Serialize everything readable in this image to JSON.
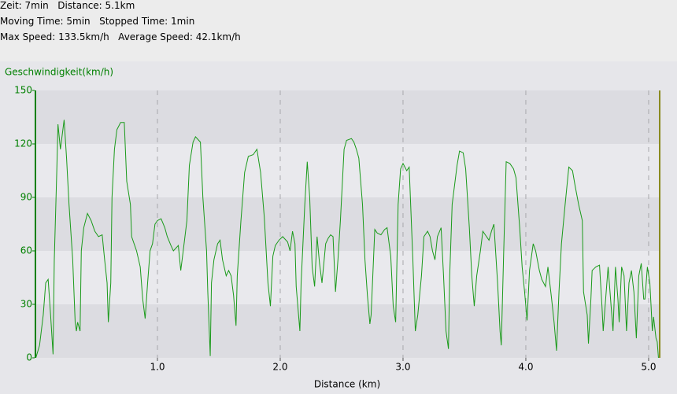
{
  "header": {
    "lines": [
      "Zeit: 7min   Distance: 5.1km",
      "Moving Time: 5min   Stopped Time: 1min",
      "Max Speed: 133.5km/h   Average Speed: 42.1km/h"
    ]
  },
  "chart_data": {
    "type": "line",
    "y_label": "Geschwindigkeit(km/h)",
    "x_label": "Distance (km)",
    "xlim": [
      0,
      5.09
    ],
    "ylim": [
      0,
      150
    ],
    "xticks": [
      {
        "value": 1,
        "label": "1.0"
      },
      {
        "value": 2,
        "label": "2.0"
      },
      {
        "value": 3,
        "label": "3.0"
      },
      {
        "value": 4,
        "label": "4.0"
      },
      {
        "value": 5,
        "label": "5.0"
      }
    ],
    "yticks": [
      0,
      30,
      60,
      90,
      120,
      150
    ],
    "grid": true,
    "x": [
      0.01,
      0.04,
      0.07,
      0.09,
      0.11,
      0.13,
      0.15,
      0.16,
      0.18,
      0.19,
      0.21,
      0.23,
      0.24,
      0.26,
      0.28,
      0.31,
      0.33,
      0.34,
      0.35,
      0.37,
      0.38,
      0.4,
      0.43,
      0.46,
      0.49,
      0.52,
      0.55,
      0.57,
      0.59,
      0.6,
      0.62,
      0.63,
      0.65,
      0.67,
      0.7,
      0.73,
      0.75,
      0.78,
      0.79,
      0.83,
      0.86,
      0.88,
      0.9,
      0.92,
      0.94,
      0.96,
      0.98,
      1.0,
      1.03,
      1.06,
      1.08,
      1.11,
      1.13,
      1.17,
      1.19,
      1.21,
      1.24,
      1.26,
      1.29,
      1.31,
      1.35,
      1.37,
      1.4,
      1.41,
      1.43,
      1.44,
      1.46,
      1.49,
      1.51,
      1.53,
      1.56,
      1.58,
      1.6,
      1.62,
      1.64,
      1.65,
      1.68,
      1.71,
      1.74,
      1.78,
      1.81,
      1.84,
      1.87,
      1.9,
      1.92,
      1.94,
      1.96,
      1.99,
      2.02,
      2.06,
      2.08,
      2.1,
      2.12,
      2.13,
      2.16,
      2.17,
      2.2,
      2.22,
      2.24,
      2.26,
      2.28,
      2.3,
      2.32,
      2.34,
      2.37,
      2.39,
      2.41,
      2.43,
      2.45,
      2.47,
      2.49,
      2.52,
      2.54,
      2.58,
      2.6,
      2.62,
      2.64,
      2.67,
      2.69,
      2.71,
      2.73,
      2.74,
      2.77,
      2.79,
      2.82,
      2.85,
      2.87,
      2.9,
      2.92,
      2.94,
      2.96,
      2.98,
      3.0,
      3.03,
      3.05,
      3.08,
      3.1,
      3.12,
      3.15,
      3.17,
      3.2,
      3.22,
      3.24,
      3.26,
      3.28,
      3.31,
      3.33,
      3.35,
      3.37,
      3.38,
      3.4,
      3.44,
      3.46,
      3.49,
      3.51,
      3.54,
      3.56,
      3.58,
      3.6,
      3.63,
      3.65,
      3.67,
      3.7,
      3.72,
      3.74,
      3.77,
      3.79,
      3.8,
      3.82,
      3.84,
      3.87,
      3.9,
      3.92,
      3.95,
      3.97,
      3.99,
      4.01,
      4.03,
      4.06,
      4.08,
      4.11,
      4.13,
      4.16,
      4.18,
      4.21,
      4.23,
      4.25,
      4.27,
      4.29,
      4.32,
      4.35,
      4.38,
      4.4,
      4.43,
      4.46,
      4.47,
      4.5,
      4.51,
      4.53,
      4.54,
      4.57,
      4.6,
      4.62,
      4.63,
      4.65,
      4.67,
      4.69,
      4.71,
      4.73,
      4.75,
      4.76,
      4.78,
      4.8,
      4.82,
      4.84,
      4.86,
      4.88,
      4.9,
      4.92,
      4.94,
      4.96,
      4.97,
      4.99,
      5.01,
      5.02,
      5.03,
      5.04,
      5.06,
      5.07,
      5.08
    ],
    "series": [
      {
        "name": "Geschwindigkeit",
        "color": "#1a9a1a",
        "values": [
          0,
          7,
          24,
          42,
          44,
          24,
          2,
          55,
          104,
          131,
          117,
          128,
          133.5,
          112,
          86,
          55,
          20,
          15,
          20,
          15,
          60,
          73,
          81,
          77,
          71,
          68,
          69,
          55,
          42,
          20,
          42,
          90,
          117,
          128,
          132,
          132,
          99,
          86,
          68,
          60,
          51,
          33,
          22,
          42,
          60,
          64,
          75,
          77,
          78,
          73,
          68,
          63,
          60,
          63,
          49,
          60,
          77,
          108,
          121,
          124,
          121,
          90,
          60,
          37,
          1,
          42,
          55,
          64,
          66,
          55,
          46,
          49,
          46,
          35,
          18,
          46,
          77,
          104,
          113,
          114,
          117,
          104,
          79,
          42,
          29,
          57,
          63,
          66,
          68,
          65,
          60,
          71,
          64,
          40,
          15,
          42,
          86,
          110,
          90,
          51,
          40,
          68,
          53,
          42,
          64,
          67,
          69,
          68,
          37,
          55,
          77,
          117,
          122,
          123,
          121,
          117,
          112,
          86,
          55,
          35,
          19,
          24,
          72,
          70,
          69,
          72,
          73,
          57,
          29,
          20,
          86,
          106,
          109,
          105,
          107,
          55,
          15,
          24,
          46,
          68,
          71,
          68,
          60,
          55,
          68,
          73,
          46,
          15,
          5,
          46,
          86,
          108,
          116,
          115,
          106,
          73,
          46,
          29,
          46,
          60,
          71,
          69,
          66,
          71,
          75,
          42,
          15,
          7,
          60,
          110,
          109,
          106,
          101,
          73,
          51,
          37,
          21,
          49,
          64,
          60,
          49,
          44,
          40,
          51,
          33,
          20,
          4,
          37,
          64,
          86,
          107,
          105,
          97,
          86,
          77,
          37,
          24,
          8,
          33,
          49,
          51,
          52,
          29,
          15,
          33,
          51,
          33,
          15,
          51,
          33,
          20,
          51,
          46,
          15,
          42,
          49,
          37,
          11,
          46,
          53,
          33,
          33,
          51,
          42,
          29,
          15,
          23,
          11,
          9,
          0
        ]
      }
    ]
  }
}
